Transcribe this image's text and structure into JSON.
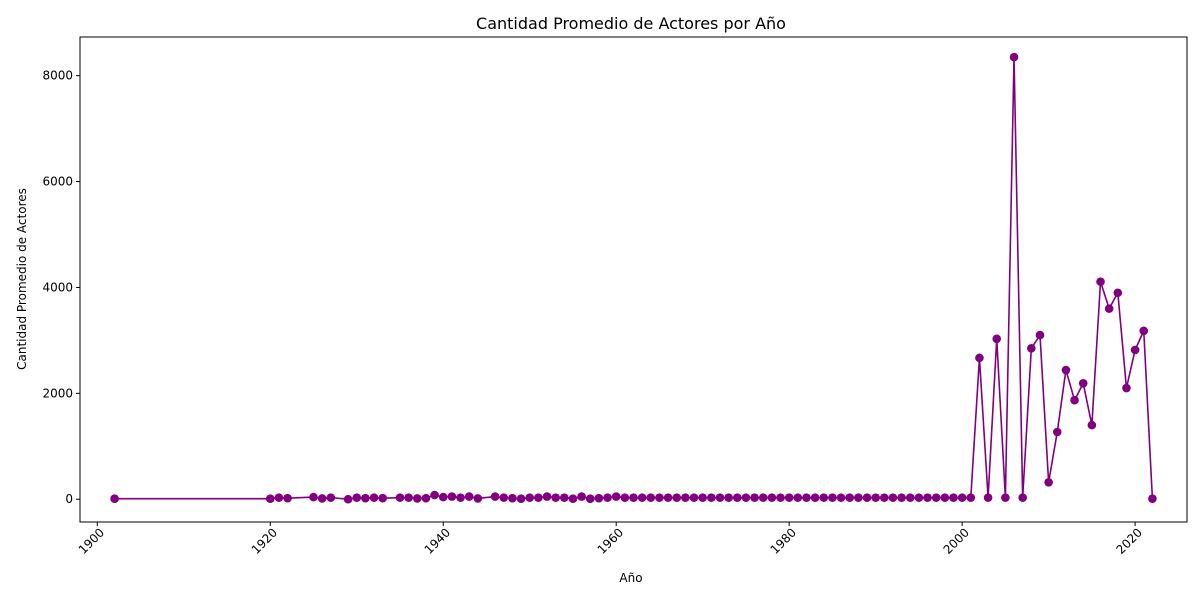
{
  "chart_data": {
    "type": "line",
    "title": "Cantidad Promedio de Actores por Año",
    "xlabel": "Año",
    "ylabel": "Cantidad Promedio de Actores",
    "xlim": [
      1898,
      2026
    ],
    "ylim": [
      -430,
      8730
    ],
    "xticks": [
      1900,
      1920,
      1940,
      1960,
      1980,
      2000,
      2020
    ],
    "yticks": [
      0,
      2000,
      4000,
      6000,
      8000
    ],
    "grid": false,
    "colors": {
      "line": "#800080",
      "marker": "#800080"
    },
    "series": [
      {
        "x": [
          1902,
          1920,
          1921,
          1922,
          1925,
          1926,
          1927,
          1929,
          1930,
          1931,
          1932,
          1933,
          1935,
          1936,
          1937,
          1938,
          1939,
          1940,
          1941,
          1942,
          1943,
          1944,
          1946,
          1947,
          1948,
          1949,
          1950,
          1951,
          1952,
          1953,
          1954,
          1955,
          1956,
          1957,
          1958,
          1959,
          1960,
          1961,
          1962,
          1963,
          1964,
          1965,
          1966,
          1967,
          1968,
          1969,
          1970,
          1971,
          1972,
          1973,
          1974,
          1975,
          1976,
          1977,
          1978,
          1979,
          1980,
          1981,
          1982,
          1983,
          1984,
          1985,
          1986,
          1987,
          1988,
          1989,
          1990,
          1991,
          1992,
          1993,
          1994,
          1995,
          1996,
          1997,
          1998,
          1999,
          2000,
          2001,
          2002,
          2003,
          2004,
          2005,
          2006,
          2007,
          2008,
          2009,
          2010,
          2011,
          2012,
          2013,
          2014,
          2015,
          2016,
          2017,
          2018,
          2019,
          2020,
          2021,
          2022
        ],
        "values": [
          10,
          10,
          30,
          20,
          40,
          15,
          30,
          0,
          30,
          20,
          30,
          20,
          30,
          30,
          15,
          20,
          80,
          40,
          50,
          30,
          50,
          15,
          50,
          30,
          20,
          10,
          30,
          30,
          50,
          30,
          30,
          10,
          50,
          10,
          20,
          30,
          50,
          30,
          30,
          30,
          30,
          30,
          30,
          30,
          30,
          30,
          30,
          30,
          30,
          30,
          30,
          30,
          30,
          30,
          30,
          30,
          30,
          30,
          30,
          30,
          30,
          30,
          30,
          30,
          30,
          30,
          30,
          30,
          30,
          30,
          30,
          30,
          30,
          30,
          30,
          30,
          30,
          30,
          2670,
          30,
          3030,
          30,
          8350,
          30,
          2850,
          3100,
          320,
          1270,
          2440,
          1870,
          2190,
          1400,
          4110,
          3600,
          3900,
          2100,
          2820,
          3180,
          10
        ]
      }
    ]
  }
}
